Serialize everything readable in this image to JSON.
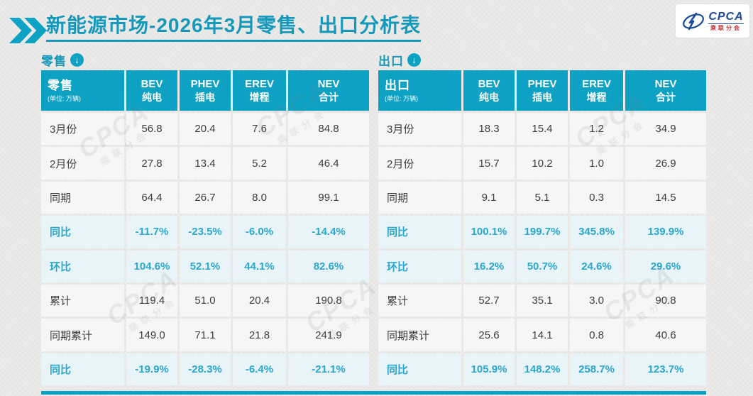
{
  "page": {
    "title": "新能源市场-2026年3月零售、出口分析表"
  },
  "logo": {
    "abbr": "CPCA",
    "cn": "乘联分会"
  },
  "icons": {
    "section_arrow": "↓"
  },
  "colors": {
    "accent_teal": "#0da2c4",
    "title_teal": "#1698ba",
    "highlight_text": "#2aa7cc",
    "highlight_bg": "#e9f4f9",
    "cell_bg": "#f6f6f4",
    "page_bg": "#ecebe9",
    "dark_text": "#3d3d3d",
    "logo_blue": "#1b4a9b",
    "logo_red": "#c43131"
  },
  "watermark": {
    "abbr": "CPCA",
    "cn": "乘联分会"
  },
  "chart_data": [
    {
      "type": "table",
      "title": "零售",
      "unit_note": "(单位: 万辆)",
      "columns": [
        {
          "en": "BEV",
          "zh": "纯电"
        },
        {
          "en": "PHEV",
          "zh": "插电"
        },
        {
          "en": "EREV",
          "zh": "增程"
        },
        {
          "en": "NEV",
          "zh": "合计"
        }
      ],
      "rows": [
        {
          "label": "3月份",
          "values": [
            "56.8",
            "20.4",
            "7.6",
            "84.8"
          ],
          "highlight": false
        },
        {
          "label": "2月份",
          "values": [
            "27.8",
            "13.4",
            "5.2",
            "46.4"
          ],
          "highlight": false
        },
        {
          "label": "同期",
          "values": [
            "64.4",
            "26.7",
            "8.0",
            "99.1"
          ],
          "highlight": false
        },
        {
          "label": "同比",
          "values": [
            "-11.7%",
            "-23.5%",
            "-6.0%",
            "-14.4%"
          ],
          "highlight": true
        },
        {
          "label": "环比",
          "values": [
            "104.6%",
            "52.1%",
            "44.1%",
            "82.6%"
          ],
          "highlight": true
        },
        {
          "label": "累计",
          "values": [
            "119.4",
            "51.0",
            "20.4",
            "190.8"
          ],
          "highlight": false
        },
        {
          "label": "同期累计",
          "values": [
            "149.0",
            "71.1",
            "21.8",
            "241.9"
          ],
          "highlight": false
        },
        {
          "label": "同比",
          "values": [
            "-19.9%",
            "-28.3%",
            "-6.4%",
            "-21.1%"
          ],
          "highlight": true
        }
      ]
    },
    {
      "type": "table",
      "title": "出口",
      "unit_note": "(单位: 万辆)",
      "columns": [
        {
          "en": "BEV",
          "zh": "纯电"
        },
        {
          "en": "PHEV",
          "zh": "插电"
        },
        {
          "en": "EREV",
          "zh": "增程"
        },
        {
          "en": "NEV",
          "zh": "合计"
        }
      ],
      "rows": [
        {
          "label": "3月份",
          "values": [
            "18.3",
            "15.4",
            "1.2",
            "34.9"
          ],
          "highlight": false
        },
        {
          "label": "2月份",
          "values": [
            "15.7",
            "10.2",
            "1.0",
            "26.9"
          ],
          "highlight": false
        },
        {
          "label": "同期",
          "values": [
            "9.1",
            "5.1",
            "0.3",
            "14.5"
          ],
          "highlight": false
        },
        {
          "label": "同比",
          "values": [
            "100.1%",
            "199.7%",
            "345.8%",
            "139.9%"
          ],
          "highlight": true
        },
        {
          "label": "环比",
          "values": [
            "16.2%",
            "50.7%",
            "24.6%",
            "29.6%"
          ],
          "highlight": true
        },
        {
          "label": "累计",
          "values": [
            "52.7",
            "35.1",
            "3.0",
            "90.8"
          ],
          "highlight": false
        },
        {
          "label": "同期累计",
          "values": [
            "25.6",
            "14.1",
            "0.8",
            "40.6"
          ],
          "highlight": false
        },
        {
          "label": "同比",
          "values": [
            "105.9%",
            "148.2%",
            "258.7%",
            "123.7%"
          ],
          "highlight": true
        }
      ]
    }
  ]
}
